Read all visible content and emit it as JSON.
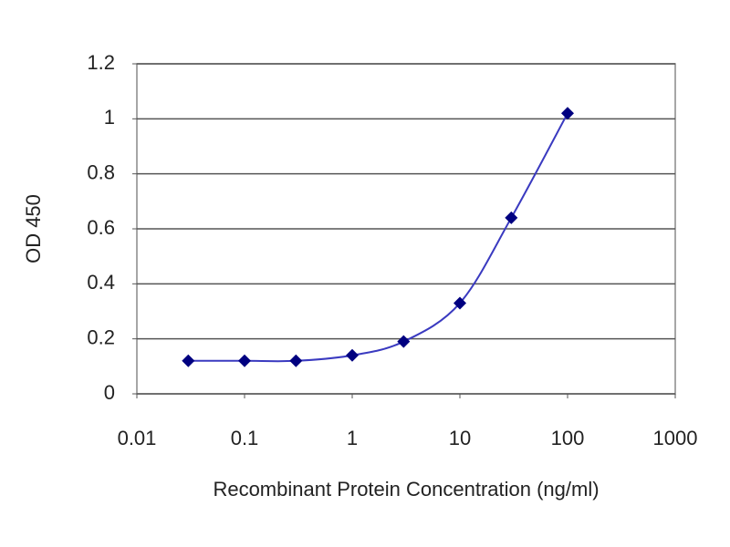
{
  "chart_data": {
    "type": "scatter",
    "xlabel": "Recombinant Protein Concentration (ng/ml)",
    "ylabel": "OD 450",
    "x_log": true,
    "grid": true,
    "series": [
      {
        "color": "#000080",
        "line_color": "#3a3ac0",
        "x": [
          0.03,
          0.1,
          0.3,
          1,
          3,
          10,
          30,
          100
        ],
        "values": [
          0.12,
          0.12,
          0.12,
          0.14,
          0.19,
          0.33,
          0.64,
          1.02
        ]
      }
    ],
    "xlim": [
      0.01,
      1000
    ],
    "xticks": [
      0.01,
      0.1,
      1,
      10,
      100,
      1000
    ],
    "ylim": [
      0,
      1.2
    ],
    "yticks": [
      0,
      0.2,
      0.4,
      0.6,
      0.8,
      1,
      1.2
    ]
  }
}
